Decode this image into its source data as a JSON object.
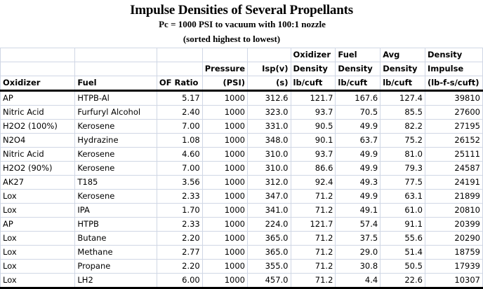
{
  "title": "Impulse Densities of Several Propellants",
  "subtitle": "Pc = 1000 PSI to vacuum with 100:1 nozzle",
  "subtitle2": "(sorted highest to lowest)",
  "table": {
    "header_rows": [
      [
        "",
        "",
        "",
        "",
        "",
        "Oxidizer",
        "Fuel",
        "Avg",
        "Density"
      ],
      [
        "",
        "",
        "",
        "Pressure",
        "Isp(v)",
        "Density",
        "Density",
        "Density",
        "Impulse"
      ],
      [
        "Oxidizer",
        "Fuel",
        "OF Ratio",
        "(PSI)",
        "(s)",
        "lb/cuft",
        "lb/cuft",
        "lb/cuft",
        "(lb-f-s/cuft)"
      ]
    ],
    "rows": [
      [
        "AP",
        "HTPB-Al",
        "5.17",
        "1000",
        "312.6",
        "121.7",
        "167.6",
        "127.4",
        "39810"
      ],
      [
        "Nitric Acid",
        "Furfuryl Alcohol",
        "2.40",
        "1000",
        "323.0",
        "93.7",
        "70.5",
        "85.5",
        "27600"
      ],
      [
        "H2O2 (100%)",
        "Kerosene",
        "7.00",
        "1000",
        "331.0",
        "90.5",
        "49.9",
        "82.2",
        "27195"
      ],
      [
        "N2O4",
        "Hydrazine",
        "1.08",
        "1000",
        "348.0",
        "90.1",
        "63.7",
        "75.2",
        "26152"
      ],
      [
        "Nitric Acid",
        "Kerosene",
        "4.60",
        "1000",
        "310.0",
        "93.7",
        "49.9",
        "81.0",
        "25111"
      ],
      [
        "H2O2 (90%)",
        "Kerosene",
        "7.00",
        "1000",
        "310.0",
        "86.6",
        "49.9",
        "79.3",
        "24587"
      ],
      [
        "AK27",
        "T185",
        "3.56",
        "1000",
        "312.0",
        "92.4",
        "49.3",
        "77.5",
        "24191"
      ],
      [
        "Lox",
        "Kerosene",
        "2.33",
        "1000",
        "347.0",
        "71.2",
        "49.9",
        "63.1",
        "21899"
      ],
      [
        "Lox",
        "IPA",
        "1.70",
        "1000",
        "341.0",
        "71.2",
        "49.1",
        "61.0",
        "20810"
      ],
      [
        "AP",
        "HTPB",
        "2.33",
        "1000",
        "224.0",
        "121.7",
        "57.4",
        "91.1",
        "20399"
      ],
      [
        "Lox",
        "Butane",
        "2.20",
        "1000",
        "365.0",
        "71.2",
        "37.5",
        "55.6",
        "20290"
      ],
      [
        "Lox",
        "Methane",
        "2.77",
        "1000",
        "365.0",
        "71.2",
        "29.0",
        "51.4",
        "18759"
      ],
      [
        "Lox",
        "Propane",
        "2.20",
        "1000",
        "355.0",
        "71.2",
        "30.8",
        "50.5",
        "17939"
      ],
      [
        "Lox",
        "LH2",
        "6.00",
        "1000",
        "457.0",
        "71.2",
        "4.4",
        "22.6",
        "10307"
      ]
    ]
  }
}
